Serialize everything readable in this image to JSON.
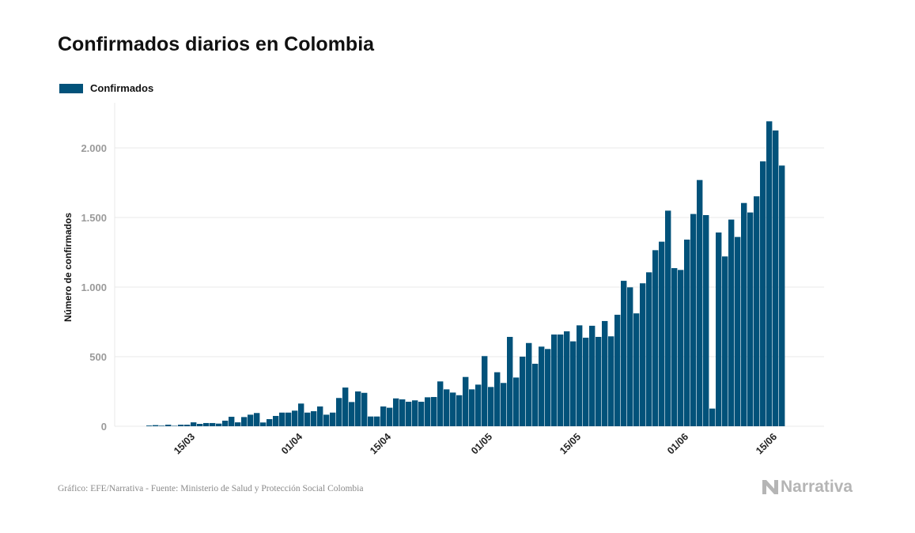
{
  "colors": {
    "bar": "#02527a",
    "grid": "#e8e8e8",
    "tick_label": "#9a9a9a",
    "logo": "#b5b5b5"
  },
  "chart_data": {
    "type": "bar",
    "title": "Confirmados diarios en Colombia",
    "legend": {
      "entries": [
        "Confirmados"
      ],
      "position": "top-left"
    },
    "ylabel": "Número de confirmados",
    "xlabel": "",
    "ylim": [
      0,
      2300
    ],
    "yticks": [
      0,
      500,
      1000,
      1500,
      2000
    ],
    "ytick_labels": [
      "0",
      "500",
      "1.000",
      "1.500",
      "2.000"
    ],
    "xtick_labels": [
      "15/03",
      "01/04",
      "15/04",
      "01/05",
      "15/05",
      "01/06",
      "15/06"
    ],
    "grid": "horizontal",
    "series": [
      {
        "name": "Confirmados",
        "values": [
          5,
          8,
          4,
          11,
          3,
          11,
          11,
          28,
          17,
          23,
          23,
          19,
          40,
          68,
          28,
          66,
          83,
          95,
          27,
          51,
          74,
          98,
          98,
          112,
          163,
          98,
          108,
          142,
          83,
          98,
          203,
          278,
          174,
          250,
          240,
          70,
          70,
          142,
          133,
          200,
          193,
          176,
          186,
          176,
          208,
          210,
          322,
          265,
          242,
          223,
          354,
          265,
          299,
          504,
          282,
          388,
          311,
          642,
          350,
          500,
          598,
          449,
          572,
          555,
          659,
          659,
          682,
          610,
          725,
          636,
          722,
          642,
          756,
          646,
          801,
          1045,
          998,
          811,
          1027,
          1106,
          1265,
          1326,
          1549,
          1136,
          1123,
          1341,
          1525,
          1769,
          1517,
          127,
          1392,
          1220,
          1485,
          1360,
          1604,
          1536,
          1652,
          1903,
          2191,
          2125,
          1873
        ]
      }
    ],
    "categories": [
      "08/03",
      "09/03",
      "10/03",
      "11/03",
      "12/03",
      "13/03",
      "14/03",
      "15/03",
      "16/03",
      "17/03",
      "18/03",
      "19/03",
      "20/03",
      "21/03",
      "22/03",
      "23/03",
      "24/03",
      "25/03",
      "26/03",
      "27/03",
      "28/03",
      "29/03",
      "30/03",
      "31/03",
      "01/04",
      "02/04",
      "03/04",
      "04/04",
      "05/04",
      "06/04",
      "07/04",
      "08/04",
      "09/04",
      "10/04",
      "11/04",
      "12/04",
      "13/04",
      "14/04",
      "15/04",
      "16/04",
      "17/04",
      "18/04",
      "19/04",
      "20/04",
      "21/04",
      "22/04",
      "23/04",
      "24/04",
      "25/04",
      "26/04",
      "27/04",
      "28/04",
      "29/04",
      "30/04",
      "01/05",
      "02/05",
      "03/05",
      "04/05",
      "05/05",
      "06/05",
      "07/05",
      "08/05",
      "09/05",
      "10/05",
      "11/05",
      "12/05",
      "13/05",
      "14/05",
      "15/05",
      "16/05",
      "17/05",
      "18/05",
      "19/05",
      "20/05",
      "21/05",
      "22/05",
      "23/05",
      "24/05",
      "25/05",
      "26/05",
      "27/05",
      "28/05",
      "29/05",
      "30/05",
      "31/05",
      "01/06",
      "02/06",
      "03/06",
      "04/06",
      "05/06",
      "06/06",
      "07/06",
      "08/06",
      "09/06",
      "10/06",
      "11/06",
      "12/06",
      "13/06",
      "14/06",
      "15/06",
      "16/06"
    ]
  },
  "footer": {
    "source": "Gráfico: EFE/Narrativa - Fuente: Ministerio de Salud y Protección Social Colombia",
    "logo_text": "Narrativa"
  }
}
